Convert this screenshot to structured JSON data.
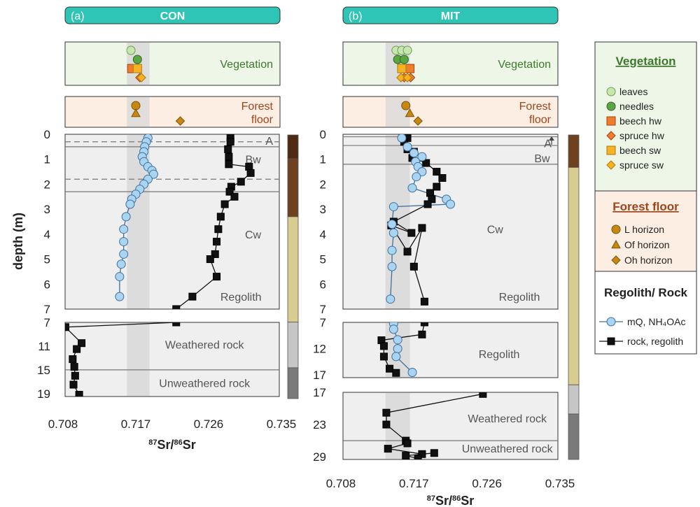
{
  "colors": {
    "header_bg": "#2ec4b6",
    "veg_bg": "#eef6e8",
    "forest_bg": "#fdeee4",
    "regolith_bg": "#efefef",
    "band": "#d8d8d8",
    "mq": "#a9d4f2",
    "mq_stroke": "#3f6f9c",
    "rock": "#111111",
    "leaves": "#c8e6b0",
    "needles": "#5aa544",
    "beech_hw": "#ef7d2d",
    "spruce_hw": "#ef7d2d",
    "beech_sw": "#f5b323",
    "spruce_sw": "#f5b323",
    "litter": "#c8880f",
    "veg_title": "#3a7a2a",
    "forest_title": "#a0451a",
    "horizon_A": "#4e2b12",
    "horizon_B": "#6e4120",
    "horizon_C": "#d9cc90",
    "weathered": "#c6c6c6",
    "unweathered": "#7a7a7a"
  },
  "chart_data": [
    {
      "type": "scatter",
      "panel_letter": "(a)",
      "title": "CON",
      "xlabel": "87Sr/86Sr",
      "ylabel": "depth (m)",
      "x_ticks": [
        "0.708",
        "0.717",
        "0.726",
        "0.735"
      ],
      "xlim": [
        0.708,
        0.735
      ],
      "veg_label": "Vegetation",
      "forest_label_1": "Forest",
      "forest_label_2": "floor",
      "vegetation": [
        {
          "kind": "leaves",
          "x": 0.7164,
          "row": 0
        },
        {
          "kind": "needles",
          "x": 0.7172,
          "row": 1
        },
        {
          "kind": "beech_hw",
          "x": 0.7165,
          "row": 2
        },
        {
          "kind": "beech_sw",
          "x": 0.7172,
          "row": 2
        },
        {
          "kind": "spruce_hw",
          "x": 0.7175,
          "row": 3
        },
        {
          "kind": "spruce_sw",
          "x": 0.7177,
          "row": 3
        }
      ],
      "forest_floor": [
        {
          "kind": "L",
          "x": 0.717,
          "row": 0
        },
        {
          "kind": "Of",
          "x": 0.717,
          "row": 1
        },
        {
          "kind": "Oh",
          "x": 0.7225,
          "row": 2
        }
      ],
      "band_x": [
        0.7159,
        0.7187
      ],
      "top": {
        "y_ticks": [
          "0",
          "1",
          "2",
          "3",
          "4",
          "5",
          "6",
          "7"
        ],
        "ylim": [
          0,
          7
        ],
        "labels": [
          {
            "text": "A",
            "x": 0.7335,
            "y": 0.25
          },
          {
            "text": "Bw",
            "x": 0.7315,
            "y": 1.0
          },
          {
            "text": "Cw",
            "x": 0.7315,
            "y": 4.0
          },
          {
            "text": "Regolith",
            "x": 0.73,
            "y": 6.5
          }
        ],
        "dashed_lines": [
          0.3,
          1.8
        ],
        "solid_lines": [
          0.5,
          2.3
        ],
        "mq": [
          [
            0.7185,
            0.15
          ],
          [
            0.7183,
            0.3
          ],
          [
            0.7181,
            0.5
          ],
          [
            0.718,
            0.7
          ],
          [
            0.7178,
            0.9
          ],
          [
            0.718,
            1.1
          ],
          [
            0.7185,
            1.3
          ],
          [
            0.719,
            1.45
          ],
          [
            0.7192,
            1.6
          ],
          [
            0.7185,
            1.8
          ],
          [
            0.718,
            2.0
          ],
          [
            0.7175,
            2.2
          ],
          [
            0.717,
            2.4
          ],
          [
            0.7165,
            2.6
          ],
          [
            0.7163,
            2.8
          ],
          [
            0.7158,
            3.3
          ],
          [
            0.7155,
            3.8
          ],
          [
            0.7155,
            4.3
          ],
          [
            0.7155,
            4.8
          ],
          [
            0.7152,
            5.2
          ],
          [
            0.715,
            5.7
          ],
          [
            0.715,
            6.5
          ]
        ],
        "rock": [
          [
            0.7287,
            0.15
          ],
          [
            0.7287,
            0.3
          ],
          [
            0.7284,
            0.6
          ],
          [
            0.7285,
            0.9
          ],
          [
            0.7285,
            1.2
          ],
          [
            0.731,
            1.3
          ],
          [
            0.7312,
            1.55
          ],
          [
            0.73,
            1.9
          ],
          [
            0.7288,
            2.1
          ],
          [
            0.7286,
            2.3
          ],
          [
            0.7292,
            2.5
          ],
          [
            0.728,
            2.8
          ],
          [
            0.7275,
            3.3
          ],
          [
            0.7272,
            3.8
          ],
          [
            0.727,
            4.3
          ],
          [
            0.7268,
            4.8
          ],
          [
            0.7262,
            5.0
          ],
          [
            0.727,
            5.7
          ],
          [
            0.724,
            6.5
          ],
          [
            0.722,
            7.0
          ]
        ]
      },
      "bottom": {
        "y_ticks": [
          "7",
          "11",
          "15",
          "19"
        ],
        "ylim": [
          7,
          19.5
        ],
        "labels": [
          {
            "text": "Weathered rock",
            "x": 0.7255,
            "y": 10.7
          },
          {
            "text": "Unweathered rock",
            "x": 0.7255,
            "y": 17.2
          }
        ],
        "solid_lines": [
          15
        ],
        "mq": [],
        "rock": [
          [
            0.722,
            7.0
          ],
          [
            0.7083,
            7.8
          ],
          [
            0.7103,
            10.5
          ],
          [
            0.7097,
            11.5
          ],
          [
            0.7092,
            13.2
          ],
          [
            0.7094,
            14.5
          ],
          [
            0.7095,
            16.0
          ],
          [
            0.7093,
            17.5
          ],
          [
            0.71,
            19.2
          ]
        ]
      },
      "bar_segments": [
        {
          "color": "horizon_A",
          "from": 0.0,
          "to": 0.09
        },
        {
          "color": "horizon_B",
          "from": 0.09,
          "to": 0.31
        },
        {
          "color": "horizon_C",
          "from": 0.31,
          "to": 0.71
        },
        {
          "color": "weathered",
          "from": 0.71,
          "to": 0.883
        },
        {
          "color": "unweathered",
          "from": 0.883,
          "to": 1.0
        }
      ]
    },
    {
      "type": "scatter",
      "panel_letter": "(b)",
      "title": "MIT",
      "xlabel": "87Sr/86Sr",
      "ylabel": "",
      "x_ticks": [
        "0.708",
        "0.717",
        "0.726",
        "0.735"
      ],
      "xlim": [
        0.708,
        0.735
      ],
      "veg_label": "Vegetation",
      "forest_label_1": "Forest",
      "forest_label_2": "floor",
      "vegetation": [
        {
          "kind": "leaves",
          "x": 0.7148,
          "row": 0
        },
        {
          "kind": "leaves",
          "x": 0.7155,
          "row": 0
        },
        {
          "kind": "leaves",
          "x": 0.7162,
          "row": 0
        },
        {
          "kind": "needles",
          "x": 0.715,
          "row": 1
        },
        {
          "kind": "needles",
          "x": 0.7158,
          "row": 1
        },
        {
          "kind": "beech_hw",
          "x": 0.7165,
          "row": 2
        },
        {
          "kind": "beech_sw",
          "x": 0.7155,
          "row": 2
        },
        {
          "kind": "spruce_hw",
          "x": 0.7158,
          "row": 3
        },
        {
          "kind": "spruce_hw",
          "x": 0.7166,
          "row": 3
        },
        {
          "kind": "spruce_sw",
          "x": 0.7154,
          "row": 3
        },
        {
          "kind": "spruce_sw",
          "x": 0.7162,
          "row": 3
        }
      ],
      "forest_floor": [
        {
          "kind": "L",
          "x": 0.716,
          "row": 0
        },
        {
          "kind": "Of",
          "x": 0.7165,
          "row": 1
        },
        {
          "kind": "Oh",
          "x": 0.7175,
          "row": 2
        }
      ],
      "band_x": [
        0.7135,
        0.7165
      ],
      "top": {
        "y_ticks": [
          "0",
          "1",
          "2",
          "3",
          "4",
          "5",
          "6",
          "7"
        ],
        "ylim": [
          0,
          7
        ],
        "labels": [
          {
            "text": "A",
            "x": 0.7335,
            "y": 0.35
          },
          {
            "text": "Bw",
            "x": 0.7328,
            "y": 0.95
          },
          {
            "text": "Cw",
            "x": 0.727,
            "y": 3.8
          },
          {
            "text": "Regolith",
            "x": 0.73,
            "y": 6.5
          }
        ],
        "dashed_lines": [],
        "solid_lines": [
          0.1,
          0.45,
          1.2
        ],
        "mq": [
          [
            0.7155,
            0.15
          ],
          [
            0.7162,
            0.5
          ],
          [
            0.717,
            0.75
          ],
          [
            0.718,
            0.9
          ],
          [
            0.7172,
            1.1
          ],
          [
            0.7175,
            1.3
          ],
          [
            0.718,
            1.5
          ],
          [
            0.7173,
            1.7
          ],
          [
            0.7168,
            2.15
          ],
          [
            0.721,
            2.6
          ],
          [
            0.7215,
            2.8
          ],
          [
            0.7145,
            2.9
          ],
          [
            0.7143,
            3.6
          ],
          [
            0.7145,
            3.95
          ],
          [
            0.7143,
            4.65
          ],
          [
            0.7143,
            5.3
          ],
          [
            0.7141,
            6.6
          ]
        ],
        "rock": [
          [
            0.7162,
            0.15
          ],
          [
            0.7158,
            0.3
          ],
          [
            0.7162,
            0.6
          ],
          [
            0.717,
            0.7
          ],
          [
            0.7168,
            0.95
          ],
          [
            0.7185,
            1.15
          ],
          [
            0.7198,
            1.5
          ],
          [
            0.7205,
            1.75
          ],
          [
            0.7198,
            2.1
          ],
          [
            0.719,
            2.35
          ],
          [
            0.7192,
            2.6
          ],
          [
            0.7187,
            2.8
          ],
          [
            0.7145,
            3.5
          ],
          [
            0.7167,
            3.95
          ],
          [
            0.7142,
            3.65
          ],
          [
            0.7162,
            4.7
          ],
          [
            0.718,
            3.75
          ],
          [
            0.717,
            5.3
          ],
          [
            0.7183,
            6.7
          ]
        ]
      },
      "bottom": {
        "y_ticks": [
          "7",
          "12",
          "17"
        ],
        "ylim": [
          7,
          17.5
        ],
        "labels": [
          {
            "text": "Regolith",
            "x": 0.7275,
            "y": 13.0
          }
        ],
        "solid_lines": [],
        "mq": [
          [
            0.7145,
            7.2
          ],
          [
            0.7145,
            8.3
          ],
          [
            0.715,
            10.3
          ],
          [
            0.715,
            12.0
          ],
          [
            0.7148,
            13.5
          ],
          [
            0.7168,
            16.5
          ]
        ],
        "rock": [
          [
            0.7183,
            7.0
          ],
          [
            0.718,
            9.3
          ],
          [
            0.713,
            10.4
          ],
          [
            0.7133,
            11.5
          ],
          [
            0.7133,
            13.5
          ],
          [
            0.714,
            15.8
          ],
          [
            0.7148,
            16.6
          ]
        ]
      },
      "bottom2": {
        "y_ticks": [
          "17",
          "23",
          "29"
        ],
        "ylim": [
          17,
          29.5
        ],
        "labels": [
          {
            "text": "Weathered rock",
            "x": 0.7285,
            "y": 21.8
          },
          {
            "text": "Unweathered rock",
            "x": 0.7285,
            "y": 27.4
          }
        ],
        "solid_lines": [
          26.0
        ],
        "mq": [],
        "rock": [
          [
            0.7255,
            17.3
          ],
          [
            0.7136,
            20.8
          ],
          [
            0.7136,
            23.0
          ],
          [
            0.716,
            26.0
          ],
          [
            0.7162,
            26.5
          ],
          [
            0.7138,
            27.5
          ],
          [
            0.718,
            28.5
          ],
          [
            0.7195,
            28.3
          ],
          [
            0.716,
            28.8
          ],
          [
            0.7175,
            29.3
          ]
        ]
      },
      "bar_segments": [
        {
          "color": "horizon_B",
          "from": 0.0,
          "to": 0.1
        },
        {
          "color": "horizon_C",
          "from": 0.1,
          "to": 0.77
        },
        {
          "color": "weathered",
          "from": 0.77,
          "to": 0.86
        },
        {
          "color": "unweathered",
          "from": 0.86,
          "to": 1.0
        }
      ]
    }
  ],
  "legend": {
    "veg_title": "Vegetation",
    "veg_items": [
      {
        "kind": "leaves",
        "label": "leaves"
      },
      {
        "kind": "needles",
        "label": "needles"
      },
      {
        "kind": "beech_hw",
        "label": "beech hw"
      },
      {
        "kind": "spruce_hw",
        "label": "spruce hw"
      },
      {
        "kind": "beech_sw",
        "label": "beech sw"
      },
      {
        "kind": "spruce_sw",
        "label": "spruce sw"
      }
    ],
    "forest_title": "Forest floor",
    "forest_items": [
      {
        "kind": "L",
        "label": "L horizon"
      },
      {
        "kind": "Of",
        "label": "Of horizon"
      },
      {
        "kind": "Oh",
        "label": "Oh horizon"
      }
    ],
    "rock_title": "Regolith/ Rock",
    "mq_label": "mQ, NH₄OAc",
    "rock_label": "rock, regolith"
  }
}
